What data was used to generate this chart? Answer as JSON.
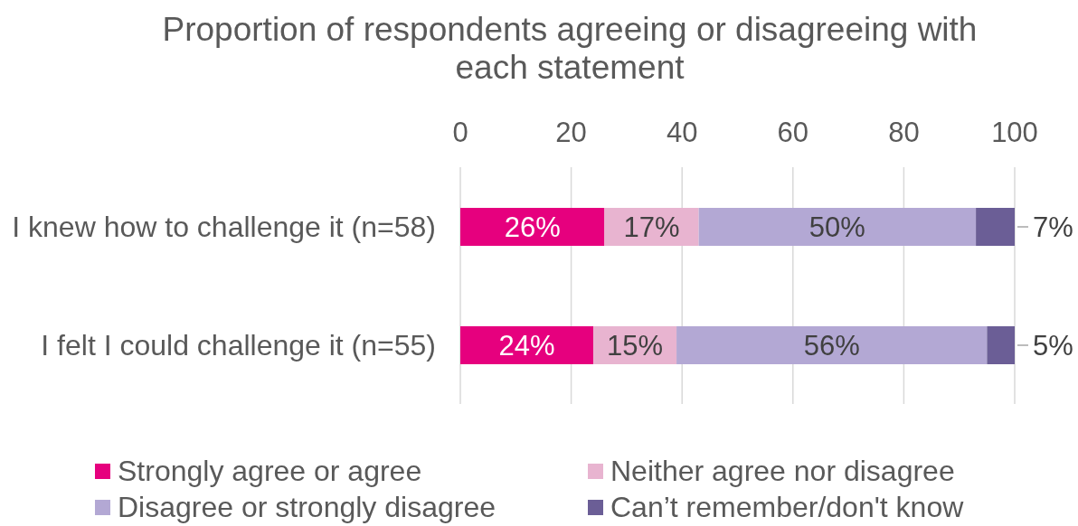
{
  "chart_data": {
    "type": "bar",
    "orientation": "horizontal",
    "stacked": true,
    "title": "Proportion of respondents agreeing or disagreeing with each statement",
    "categories": [
      "I knew how to challenge it (n=58)",
      "I felt I could challenge it (n=55)"
    ],
    "series": [
      {
        "name": "Strongly agree or agree",
        "color": "#e6007e",
        "values": [
          26,
          24
        ],
        "value_labels": [
          "26%",
          "24%"
        ]
      },
      {
        "name": "Neither agree nor disagree",
        "color": "#e8b4d0",
        "values": [
          17,
          15
        ],
        "value_labels": [
          "17%",
          "15%"
        ]
      },
      {
        "name": "Disagree or strongly disagree",
        "color": "#b3a8d4",
        "values": [
          50,
          56
        ],
        "value_labels": [
          "50%",
          "56%"
        ]
      },
      {
        "name": "Can’t remember/don't know",
        "color": "#6b5e96",
        "values": [
          7,
          5
        ],
        "value_labels": [
          "7%",
          "5%"
        ]
      }
    ],
    "xlim": [
      0,
      100
    ],
    "xticks": [
      0,
      20,
      40,
      60,
      80,
      100
    ],
    "grid": "x",
    "legend": "bottom"
  }
}
